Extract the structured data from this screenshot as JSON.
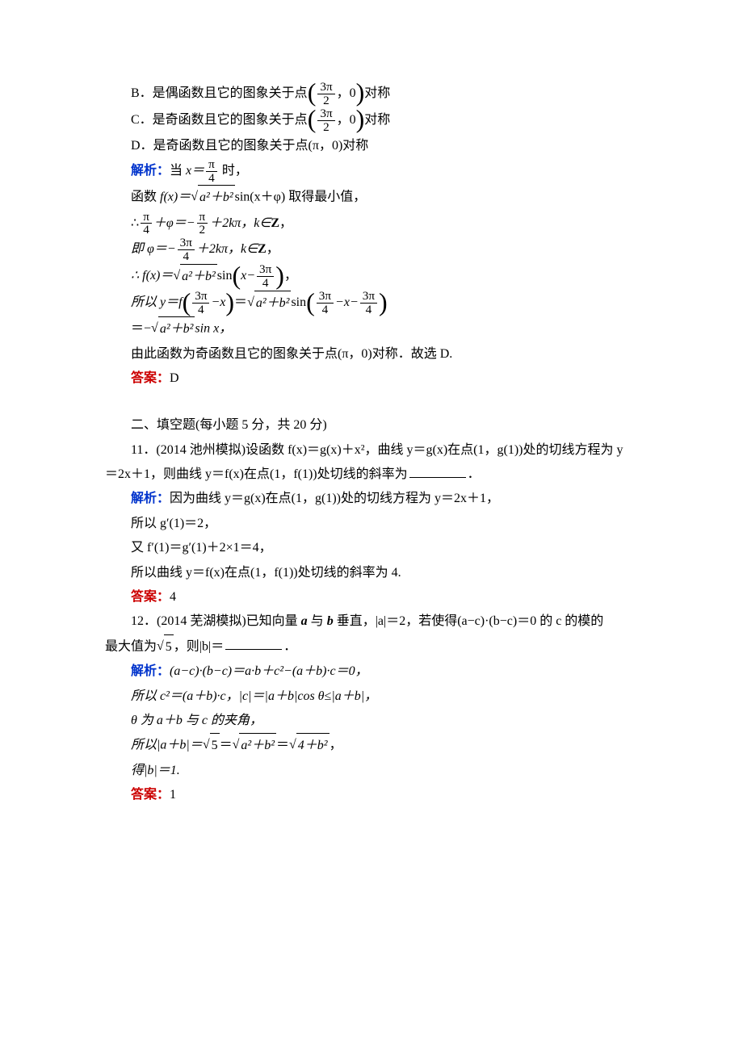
{
  "colors": {
    "blue": "#0033cc",
    "red": "#cc0000",
    "text": "#000000",
    "bg": "#ffffff"
  },
  "font": {
    "body_family": "SimSun",
    "math_family": "Times New Roman",
    "size_pt": 12
  },
  "labels": {
    "analysis": "解析：",
    "answer": "答案："
  },
  "q10": {
    "optionB_prefix": "B．是偶函数且它的图象关于点",
    "optionB_point_num": "3π",
    "optionB_point_den": "2",
    "optionB_point_zero": "0",
    "optionB_suffix": "对称",
    "optionC_prefix": "C．是奇函数且它的图象关于点",
    "optionC_suffix": "对称",
    "optionD": "D．是奇函数且它的图象关于点(π，0)对称",
    "ana_l1_a": "当 ",
    "ana_l1_b": " 时，",
    "x_eq": "x＝",
    "pi_over_4_num": "π",
    "pi_over_4_den": "4",
    "ana_l2_a": "函数 ",
    "ana_l2_b": "f(x)＝",
    "ana_l2_rad": "a²＋b²",
    "ana_l2_c": "sin(x＋φ) 取得最小值，",
    "ana_l3_a": "∴",
    "ana_l3_b": "＋φ＝−",
    "ana_l3_c": "＋2kπ，k∈",
    "Z": "Z",
    "comma": "，",
    "pi_over_2_num": "π",
    "pi_over_2_den": "2",
    "ana_l4_a": "即 φ＝−",
    "ana_l4_b": "＋2kπ，k∈",
    "threepi_over_4_num": "3π",
    "threepi_over_4_den": "4",
    "ana_l5_a": "∴ f(x)＝",
    "ana_l5_b": "sin",
    "ana_l5_c": "x−",
    "ana_l5_comma": "，",
    "ana_l6_a": "所以 y＝f",
    "ana_l6_b": "−x",
    "ana_l6_c": "＝",
    "ana_l6_d": "sin",
    "ana_l6_e": "−x−",
    "ana_l7_a": "＝−",
    "ana_l7_b": "sin x，",
    "ana_l8": "由此函数为奇函数且它的图象关于点(π，0)对称．故选 D.",
    "answer": "D"
  },
  "section2_title": "二、填空题(每小题 5 分，共 20 分)",
  "q11": {
    "stem_a": "11．(2014 池州模拟)设函数 f(x)＝g(x)＋x²，曲线 y＝g(x)在点(1，g(1))处的切线方程为 y",
    "stem_b": "＝2x＋1，则曲线 y＝f(x)在点(1，f(1))处切线的斜率为",
    "stem_c": "．",
    "ana_l1": "因为曲线 y＝g(x)在点(1，g(1))处的切线方程为 y＝2x＋1，",
    "ana_l2": "所以 g′(1)＝2，",
    "ana_l3": "又 f′(1)＝g′(1)＋2×1＝4，",
    "ana_l4": "所以曲线 y＝f(x)在点(1，f(1))处切线的斜率为 4.",
    "answer": "4"
  },
  "q12": {
    "stem_a": "12．(2014 芜湖模拟)已知向量 ",
    "a": "a",
    "and": " 与 ",
    "b": "b",
    "stem_b": " 垂直，|a|＝2，若使得(a−c)·(b−c)＝0 的 c 的模的",
    "stem_c": "最大值为",
    "sqrt5": "5",
    "stem_d": "，则|b|＝",
    "stem_e": "．",
    "ana_l1_a": "(a−c)·(b−c)＝a·b＋c²−(a＋b)·c＝0，",
    "ana_l2_a": "所以 c²＝(a＋b)·c，|c|＝|a＋b|cos θ≤|a＋b|，",
    "ana_l3_a": "θ 为 a＋b 与 c 的夹角，",
    "ana_l4_a": "所以|a＋b|＝",
    "ana_l4_b": "＝",
    "ana_l4_rad1": "a²＋b²",
    "ana_l4_c": "＝",
    "ana_l4_rad2": "4＋b²",
    "ana_l4_d": "，",
    "ana_l5": "得|b|＝1.",
    "answer": "1"
  }
}
